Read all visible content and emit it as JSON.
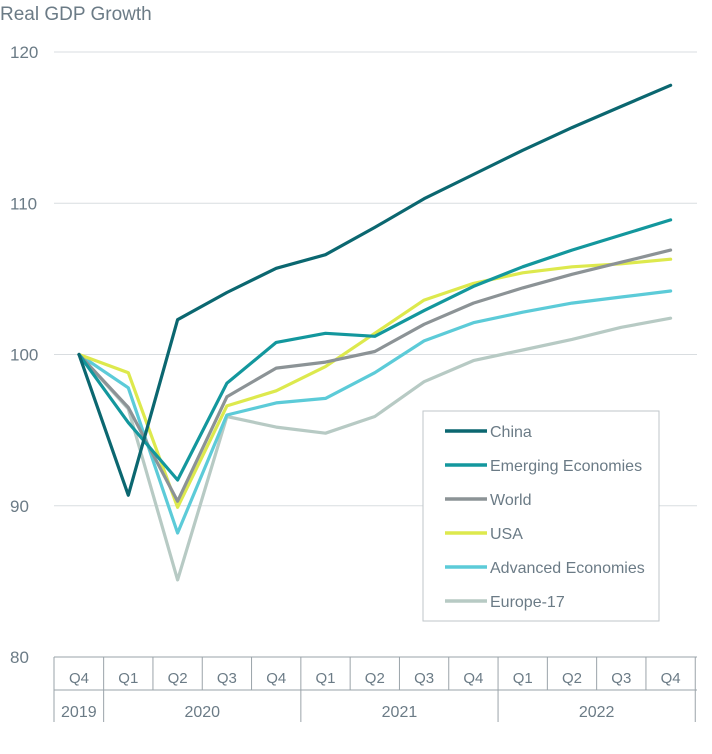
{
  "chart_data": {
    "type": "line",
    "title": "Real GDP Growth",
    "xlabel": "",
    "ylabel": "",
    "ylim": [
      80,
      120
    ],
    "yticks": [
      80,
      90,
      100,
      110,
      120
    ],
    "grid": true,
    "legend_position": "bottom-right",
    "x": [
      "Q4 2019",
      "Q1 2020",
      "Q2 2020",
      "Q3 2020",
      "Q4 2020",
      "Q1 2021",
      "Q2 2021",
      "Q3 2021",
      "Q4 2021",
      "Q1 2022",
      "Q2 2022",
      "Q3 2022",
      "Q4 2022"
    ],
    "quarter_labels": [
      "Q4",
      "Q1",
      "Q2",
      "Q3",
      "Q4",
      "Q1",
      "Q2",
      "Q3",
      "Q4",
      "Q1",
      "Q2",
      "Q3",
      "Q4"
    ],
    "year_groups": [
      {
        "label": "2019",
        "count": 1
      },
      {
        "label": "2020",
        "count": 4
      },
      {
        "label": "2021",
        "count": 4
      },
      {
        "label": "2022",
        "count": 4
      }
    ],
    "series": [
      {
        "name": "China",
        "color": "#0b6770",
        "values": [
          100,
          90.7,
          102.3,
          104.1,
          105.7,
          106.6,
          108.4,
          110.3,
          111.9,
          113.5,
          115.0,
          116.4,
          117.8
        ]
      },
      {
        "name": "Emerging Economies",
        "color": "#13979d",
        "values": [
          100,
          95.5,
          91.7,
          98.1,
          100.8,
          101.4,
          101.2,
          102.9,
          104.5,
          105.8,
          106.9,
          107.9,
          108.9
        ]
      },
      {
        "name": "World",
        "color": "#8c9396",
        "values": [
          100,
          96.5,
          90.3,
          97.2,
          99.1,
          99.5,
          100.2,
          102.0,
          103.4,
          104.4,
          105.3,
          106.1,
          106.9
        ]
      },
      {
        "name": "USA",
        "color": "#dde94d",
        "values": [
          100,
          98.8,
          89.9,
          96.6,
          97.6,
          99.2,
          101.4,
          103.6,
          104.7,
          105.4,
          105.8,
          106.0,
          106.3
        ]
      },
      {
        "name": "Advanced Economies",
        "color": "#5ccbd8",
        "values": [
          100,
          97.8,
          88.2,
          96.0,
          96.8,
          97.1,
          98.8,
          100.9,
          102.1,
          102.8,
          103.4,
          103.8,
          104.2
        ]
      },
      {
        "name": "Europe-17",
        "color": "#b7cac4",
        "values": [
          100,
          96.4,
          85.1,
          95.9,
          95.2,
          94.8,
          95.9,
          98.2,
          99.6,
          100.3,
          101.0,
          101.8,
          102.4
        ]
      }
    ]
  }
}
